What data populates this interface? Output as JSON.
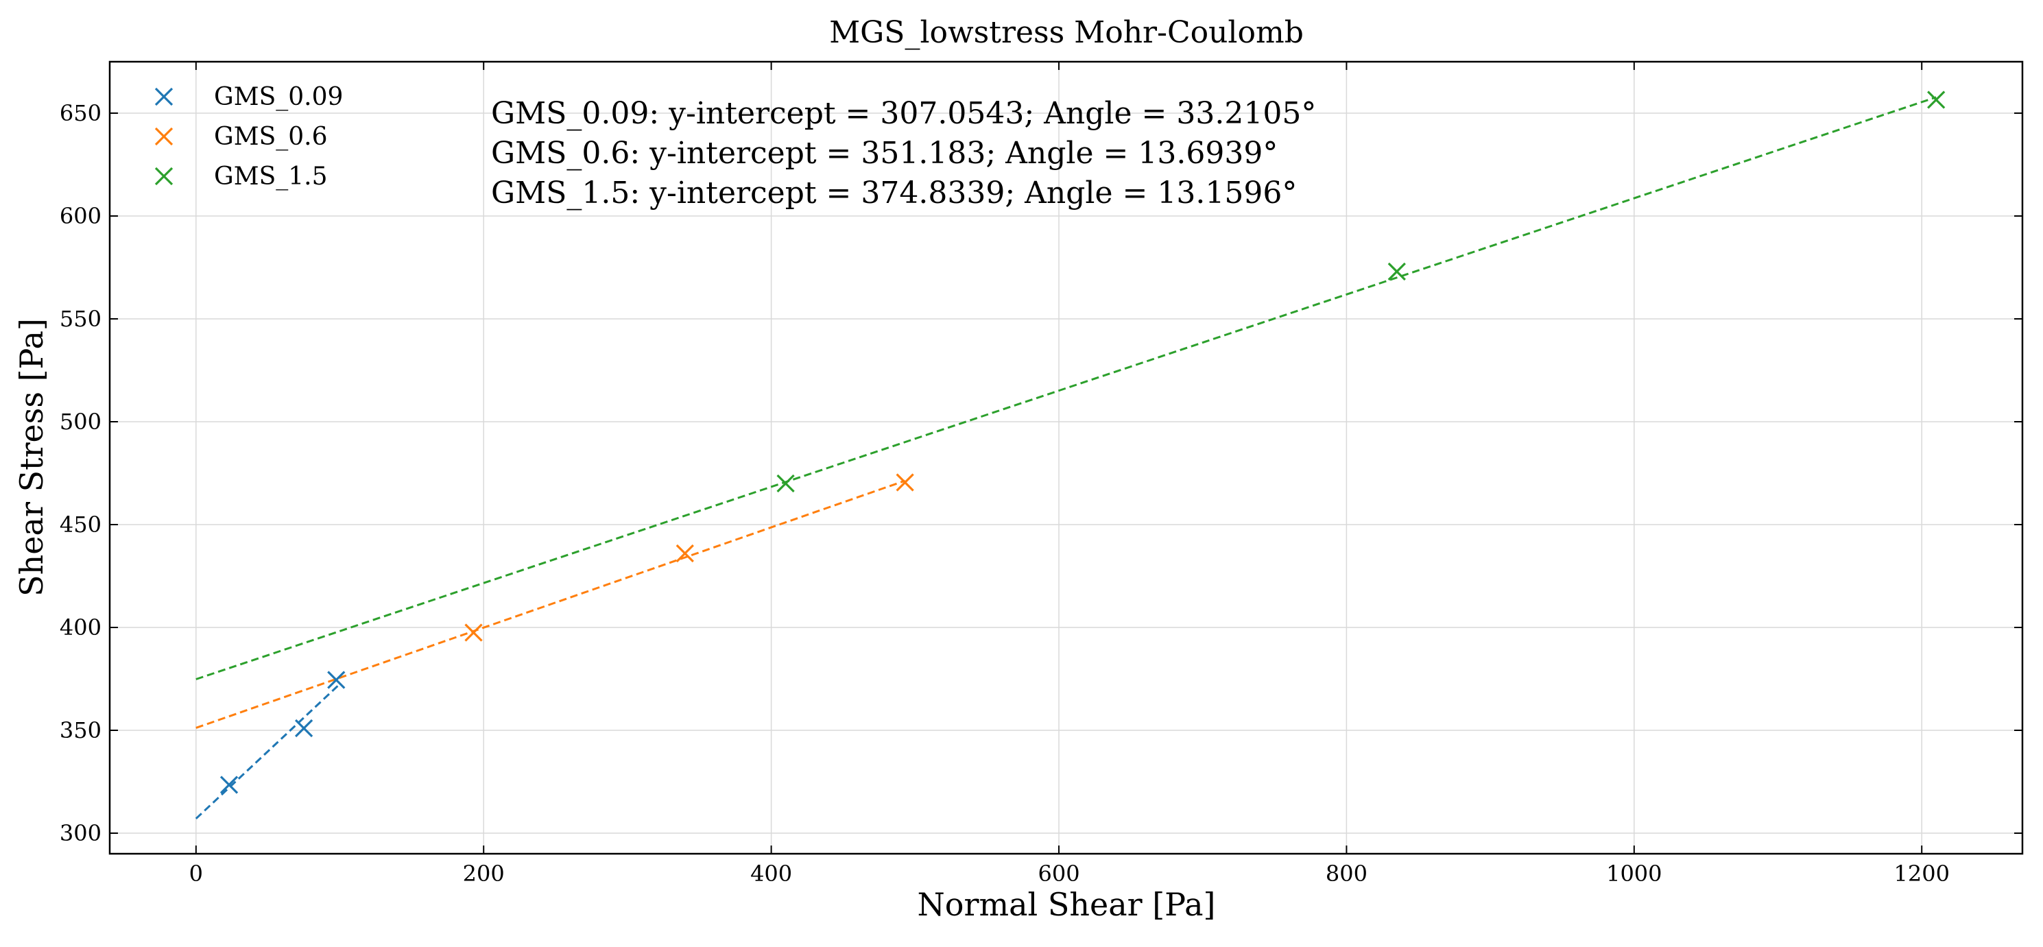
{
  "chart_data": {
    "type": "scatter",
    "title": "MGS_lowstress Mohr-Coulomb",
    "xlabel": "Normal Shear [Pa]",
    "ylabel": "Shear Stress [Pa]",
    "xlim": [
      -60,
      1270
    ],
    "ylim": [
      290,
      675
    ],
    "xticks": [
      0,
      200,
      400,
      600,
      800,
      1000,
      1200
    ],
    "yticks": [
      300,
      350,
      400,
      450,
      500,
      550,
      600,
      650
    ],
    "grid": true,
    "legend_position": "top-left",
    "series": [
      {
        "name": "GMS_0.09",
        "color": "#1f77b4",
        "marker": "x",
        "points": [
          [
            23,
            323.5
          ],
          [
            75,
            351
          ],
          [
            97.5,
            374.5
          ]
        ],
        "fit": {
          "intercept": 307.0543,
          "angle_deg": 33.2105,
          "x_start": 0,
          "x_end": 100
        }
      },
      {
        "name": "GMS_0.6",
        "color": "#ff7f0e",
        "marker": "x",
        "points": [
          [
            193,
            397.5
          ],
          [
            340,
            436
          ],
          [
            493,
            470.5
          ]
        ],
        "fit": {
          "intercept": 351.183,
          "angle_deg": 13.6939,
          "x_start": 0,
          "x_end": 493
        }
      },
      {
        "name": "GMS_1.5",
        "color": "#2ca02c",
        "marker": "x",
        "points": [
          [
            410,
            470
          ],
          [
            835,
            573
          ],
          [
            1210,
            656.5
          ]
        ],
        "fit": {
          "intercept": 374.8339,
          "angle_deg": 13.1596,
          "x_start": 0,
          "x_end": 1210
        }
      }
    ],
    "annotations": [
      "GMS_0.09: y-intercept = 307.0543; Angle = 33.2105°",
      "GMS_0.6: y-intercept = 351.183; Angle = 13.6939°",
      "GMS_1.5: y-intercept = 374.8339; Angle = 13.1596°"
    ]
  }
}
